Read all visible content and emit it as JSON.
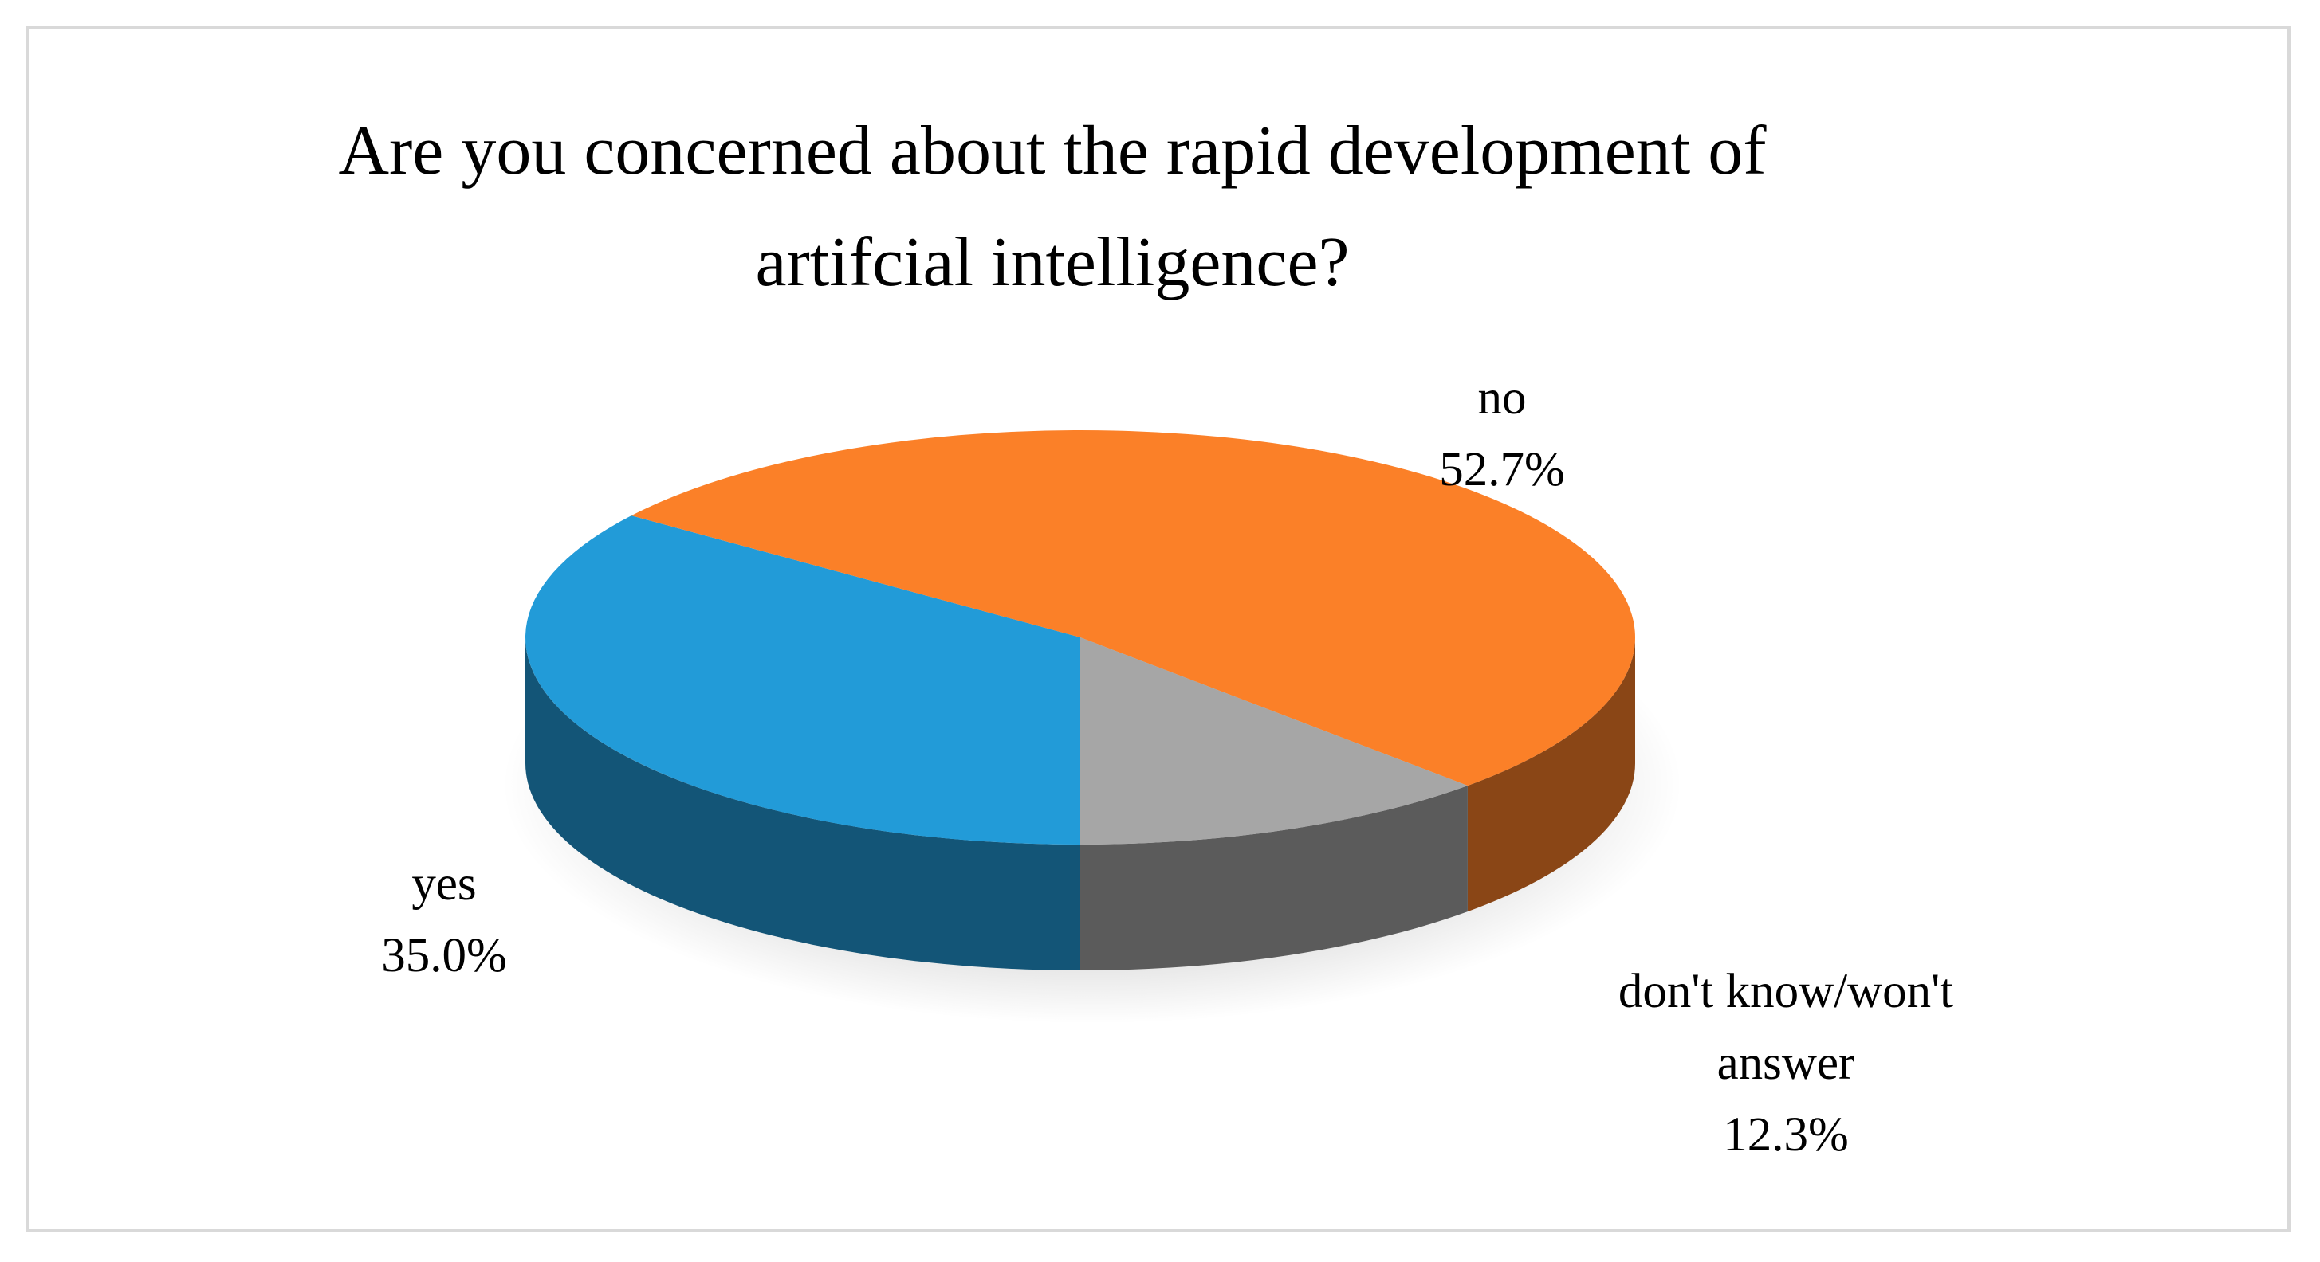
{
  "chart_data": {
    "type": "pie",
    "title": "Are you concerned about the rapid development of artifcial intelligence?",
    "categories": [
      "yes",
      "no",
      "don't know/won't answer"
    ],
    "values": [
      35,
      52.7,
      12.3
    ],
    "value_labels": [
      "35.0%",
      "52.7%",
      "12.3%"
    ],
    "colors": [
      "#229bd8",
      "#fb8028",
      "#a6a6a6"
    ]
  }
}
